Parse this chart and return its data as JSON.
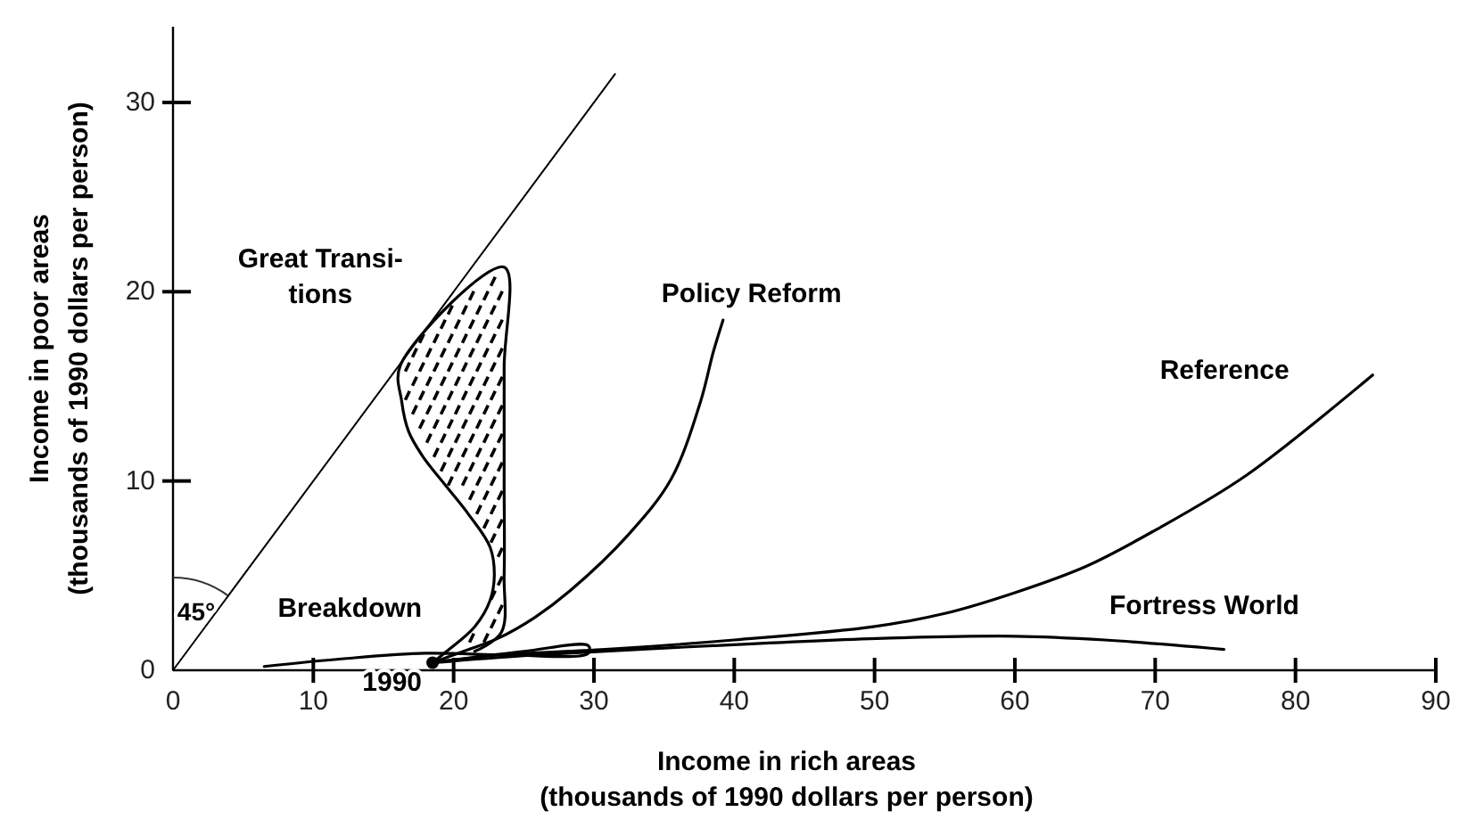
{
  "chart_data": {
    "type": "line",
    "xlabel": "Income in rich areas\n(thousands of 1990 dollars per person)",
    "ylabel": "Income in poor areas\n(thousands of 1990 dollars per person)",
    "xlim": [
      0,
      90
    ],
    "xticks": [
      0,
      10,
      20,
      30,
      40,
      50,
      60,
      70,
      80,
      90
    ],
    "ylim": [
      0,
      34
    ],
    "yticks": [
      0,
      10,
      20,
      30
    ],
    "series": [
      {
        "color": "#000000",
        "x": [
          0,
          31.5
        ],
        "values": [
          0,
          31.5
        ]
      },
      {
        "name": "Policy Reform",
        "color": "#000000",
        "x": [
          18.5,
          20.7,
          23.2,
          25.8,
          28.3,
          32.5,
          35.5,
          37.6,
          38.5,
          39.2
        ],
        "values": [
          0.4,
          1.0,
          1.7,
          2.8,
          4.2,
          7.2,
          10.1,
          14.2,
          16.8,
          18.5
        ]
      },
      {
        "name": "Reference",
        "color": "#000000",
        "x": [
          18.5,
          23.2,
          30.8,
          40,
          49.9,
          55,
          60,
          65.1,
          70,
          76.5,
          85.5
        ],
        "values": [
          0.4,
          0.8,
          1.1,
          1.6,
          2.3,
          3.0,
          4.1,
          5.5,
          7.4,
          10.3,
          15.6
        ]
      },
      {
        "name": "Fortress World",
        "color": "#000000",
        "x": [
          18.5,
          25.8,
          38.5,
          51.1,
          60,
          66.4,
          74.9
        ],
        "values": [
          0.4,
          0.8,
          1.3,
          1.7,
          1.8,
          1.6,
          1.1
        ]
      },
      {
        "name": "Breakdown",
        "color": "#000000",
        "x": [
          18.5,
          25,
          29.6,
          29.6,
          24,
          18,
          12,
          6.5
        ],
        "values": [
          0.4,
          1.0,
          1.3,
          0.9,
          0.8,
          0.9,
          0.6,
          0.2
        ]
      },
      {
        "name": "Great Transi-\ntions",
        "color": "#000000",
        "x": [
          18.5,
          19.5,
          21.5,
          22.6,
          22.9,
          22.6,
          21.1,
          19.5,
          17.8,
          16.8,
          16.3,
          16.2,
          23.6,
          23.6,
          23.6,
          23.6,
          23.4,
          21.5
        ],
        "values": [
          0.4,
          1.0,
          2.3,
          3.7,
          5.0,
          6.5,
          8.2,
          9.7,
          11.3,
          12.6,
          14.2,
          16.1,
          21.3,
          16,
          10,
          5,
          2.0,
          1.0
        ]
      },
      {
        "type": "scatter",
        "color": "#000000",
        "x": [
          18.5
        ],
        "values": [
          0.4
        ]
      }
    ],
    "annotations": [
      {
        "text": "1990",
        "x": 18.5,
        "y": 0.4
      },
      "45°"
    ]
  }
}
